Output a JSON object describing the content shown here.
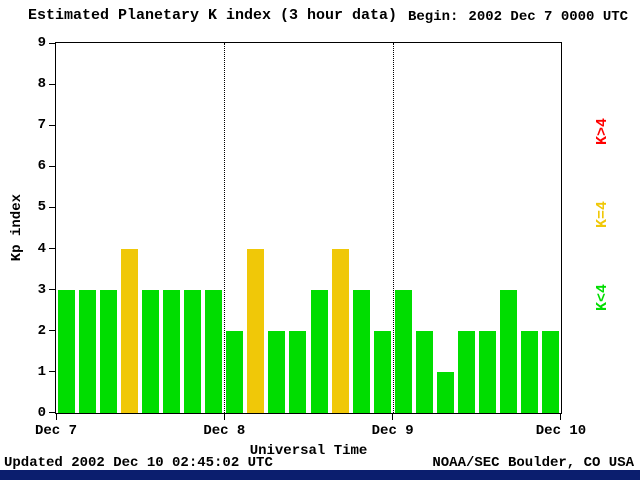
{
  "title": "Estimated Planetary K index (3 hour data)",
  "begin": {
    "label": "Begin:",
    "value": "2002 Dec 7 0000 UTC"
  },
  "chart_data": {
    "type": "bar",
    "title": "Estimated Planetary K index (3 hour data)",
    "begin_time": "2002 Dec 7 0000 UTC",
    "xlabel": "Universal Time",
    "ylabel": "Kp index",
    "ylim": [
      0,
      9
    ],
    "yticks": [
      0,
      1,
      2,
      3,
      4,
      5,
      6,
      7,
      8,
      9
    ],
    "x_day_labels": [
      "Dec 7",
      "Dec 8",
      "Dec 9",
      "Dec 10"
    ],
    "bars_per_day": 8,
    "interval_hours": 3,
    "values": [
      3,
      3,
      3,
      4,
      3,
      3,
      3,
      3,
      2,
      4,
      2,
      2,
      3,
      4,
      3,
      2,
      3,
      2,
      1,
      2,
      2,
      3,
      2,
      2
    ],
    "color_rules": {
      "low": {
        "condition": "K<4",
        "color": "#00dd00"
      },
      "mid": {
        "condition": "K=4",
        "color": "#f0c808"
      },
      "high": {
        "condition": "K>4",
        "color": "#ff0000"
      }
    },
    "grid": "dotted vertical lines at day boundaries",
    "legend_position": "right"
  },
  "legend": [
    {
      "label": "K>4",
      "color": "#ff0000"
    },
    {
      "label": "K=4",
      "color": "#f0c808"
    },
    {
      "label": "K<4",
      "color": "#00dd00"
    }
  ],
  "footer": {
    "updated": "Updated 2002 Dec 10 02:45:02 UTC",
    "source": "NOAA/SEC Boulder, CO USA",
    "bar_color": "#0b1e6e"
  }
}
